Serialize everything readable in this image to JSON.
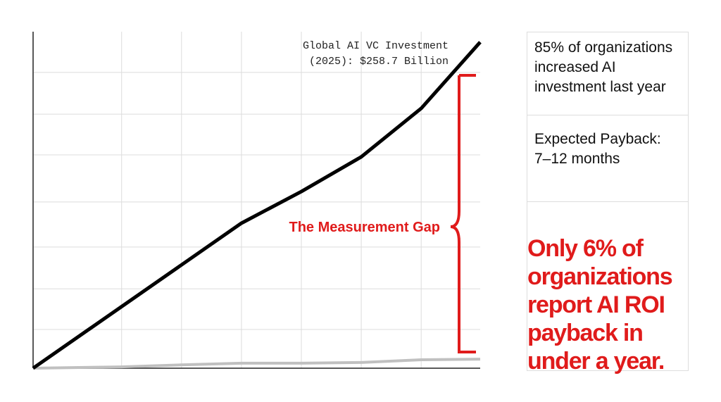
{
  "chart_data": {
    "type": "line",
    "annotation": [
      "Global AI VC Investment",
      "(2025): $258.7 Billion"
    ],
    "gap_label": "The Measurement Gap",
    "xlim": [
      0,
      100
    ],
    "ylim": [
      0,
      100
    ],
    "xticks": [
      19.8,
      33.2,
      46.6,
      60,
      73.4,
      86.8
    ],
    "yticks": [
      11.5,
      23.6,
      36.0,
      49.4,
      63.4,
      75.5,
      87.9
    ],
    "grid": true,
    "series": [
      {
        "color": "#000000",
        "x": [
          0,
          46.6,
          60,
          73.4,
          86.8,
          100
        ],
        "values": [
          0,
          43.1,
          52.5,
          62.8,
          77.2,
          96.9
        ]
      },
      {
        "color": "#c0c0c0",
        "x": [
          0,
          19.8,
          33.2,
          46.6,
          60,
          73.4,
          86.8,
          100
        ],
        "values": [
          0,
          0.4,
          1.0,
          1.5,
          1.5,
          1.7,
          2.5,
          2.7
        ]
      }
    ]
  },
  "panel": {
    "stat": [
      "85% of organizations",
      "increased AI",
      "investment last year"
    ],
    "payback": [
      "Expected Payback:",
      "7–12 months"
    ],
    "highlight": [
      "Only 6% of",
      "organizations",
      "report AI ROI",
      "payback in",
      "under a year."
    ]
  }
}
